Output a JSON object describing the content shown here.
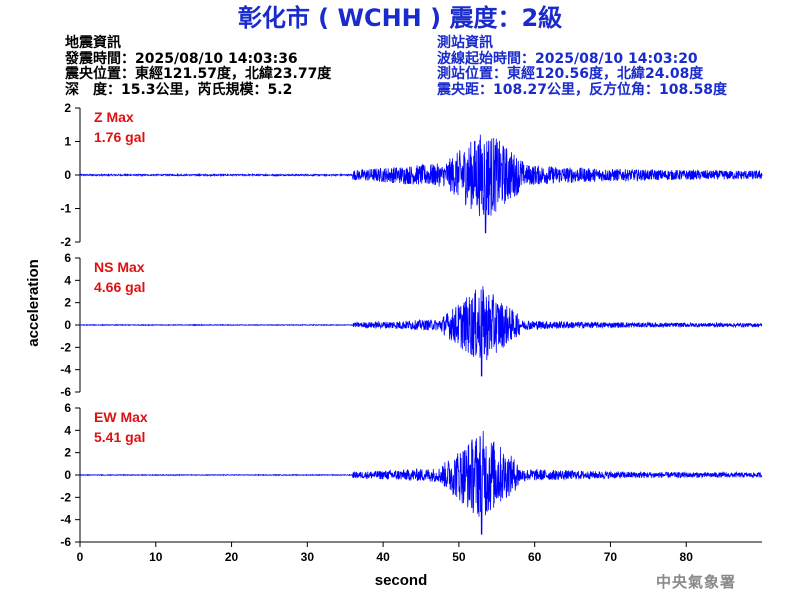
{
  "title": "彰化市 ( WCHH ) 震度：2級",
  "event_info": {
    "heading": "地震資訊",
    "origin_time": "發震時間：2025/08/10 14:03:36",
    "epicenter": "震央位置：東經121.57度，北緯23.77度",
    "depth_magnitude": "深　度：15.3公里，芮氏規模：5.2"
  },
  "station_info": {
    "heading": "測站資訊",
    "onset_time": "波線起始時間：2025/08/10 14:03:20",
    "location": "測站位置：東經120.56度，北緯24.08度",
    "distance_azimuth": "震央距：108.27公里，反方位角：108.58度"
  },
  "credit": "中央氣象署",
  "colors": {
    "title": "#1a2bcc",
    "trace": "#0000ff",
    "max_label": "#dd1111",
    "axis": "#000000"
  },
  "chart_data": [
    {
      "type": "line",
      "component": "Z",
      "max_label": "Z Max",
      "max_value": "1.76 gal",
      "peak": 1.76,
      "ylim": [
        -2,
        2
      ],
      "yticks": [
        -2,
        -1,
        0,
        1,
        2
      ],
      "xlim": [
        0,
        90
      ],
      "x_noise_end": 36,
      "envelope": {
        "onset": 36,
        "pre_amp": 0.02,
        "early_amp": 0.25,
        "peak_time": 53.5,
        "peak_amp": 1.76,
        "decay_end_amp": 0.12
      }
    },
    {
      "type": "line",
      "component": "NS",
      "max_label": "NS Max",
      "max_value": "4.66 gal",
      "peak": 4.66,
      "ylim": [
        -6,
        6
      ],
      "yticks": [
        -6,
        -4,
        -2,
        0,
        2,
        4,
        6
      ],
      "xlim": [
        0,
        90
      ],
      "x_noise_end": 36,
      "envelope": {
        "onset": 36,
        "pre_amp": 0.03,
        "early_amp": 0.35,
        "peak_time": 53.0,
        "peak_amp": 4.66,
        "decay_end_amp": 0.15
      }
    },
    {
      "type": "line",
      "component": "EW",
      "max_label": "EW Max",
      "max_value": "5.41 gal",
      "peak": 5.41,
      "ylim": [
        -6,
        6
      ],
      "yticks": [
        -6,
        -4,
        -2,
        0,
        2,
        4,
        6
      ],
      "xlim": [
        0,
        90
      ],
      "xticks": [
        0,
        10,
        20,
        30,
        40,
        50,
        60,
        70,
        80
      ],
      "x_noise_end": 36,
      "envelope": {
        "onset": 36,
        "pre_amp": 0.03,
        "early_amp": 0.45,
        "peak_time": 53.0,
        "peak_amp": 5.41,
        "decay_end_amp": 0.2
      }
    }
  ],
  "xlabel": "second",
  "ylabel": "acceleration"
}
